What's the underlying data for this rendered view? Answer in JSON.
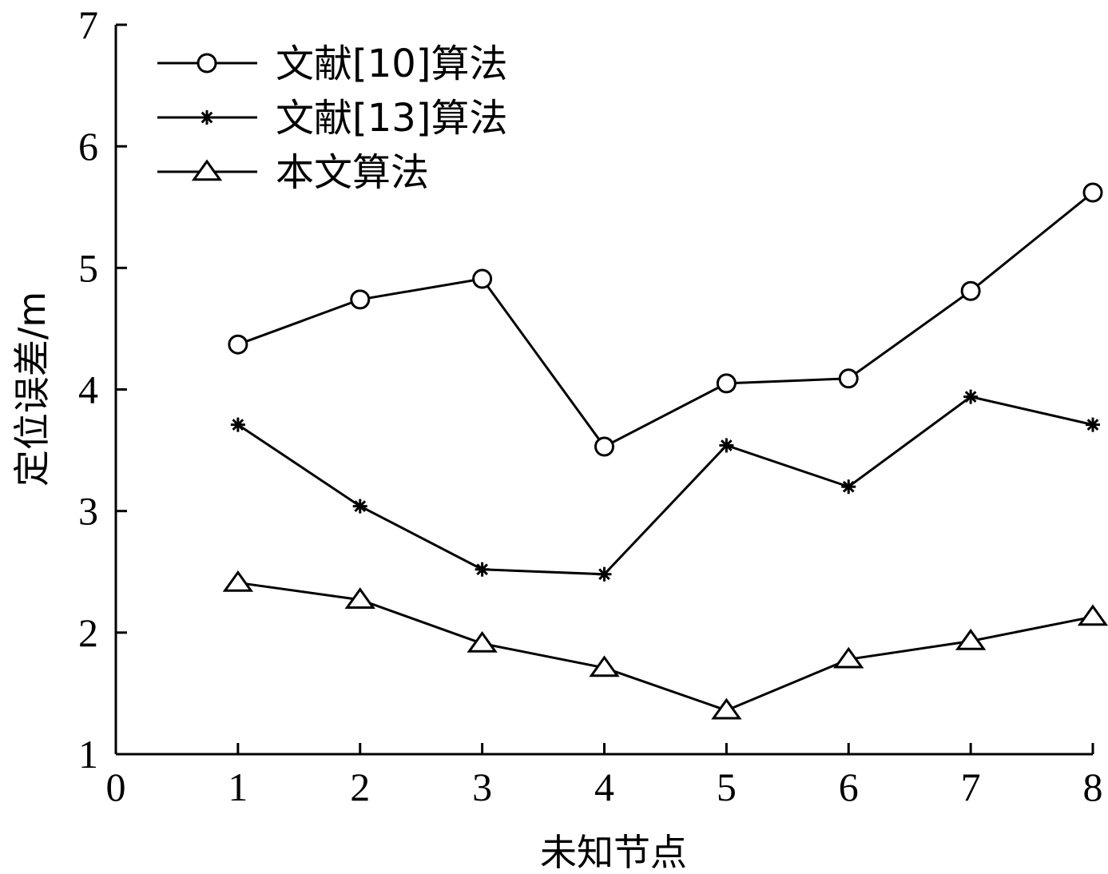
{
  "chart_data": {
    "type": "line",
    "x": [
      1,
      2,
      3,
      4,
      5,
      6,
      7,
      8
    ],
    "xlabel": "未知节点",
    "ylabel": "定位误差/m",
    "xlim": [
      0,
      8
    ],
    "ylim": [
      1,
      7
    ],
    "xticks": [
      "0",
      "1",
      "2",
      "3",
      "4",
      "5",
      "6",
      "7",
      "8"
    ],
    "yticks": [
      "1",
      "2",
      "3",
      "4",
      "5",
      "6",
      "7"
    ],
    "grid": false,
    "legend_position": "top-left",
    "series": [
      {
        "name": "文献[10]算法",
        "marker": "circle",
        "values": [
          4.37,
          4.74,
          4.91,
          3.53,
          4.05,
          4.09,
          4.81,
          5.62
        ]
      },
      {
        "name": "文献[13]算法",
        "marker": "star",
        "values": [
          3.71,
          3.04,
          2.52,
          2.48,
          3.54,
          3.2,
          3.94,
          3.71
        ]
      },
      {
        "name": "本文算法",
        "marker": "triangle",
        "values": [
          2.41,
          2.27,
          1.91,
          1.71,
          1.36,
          1.78,
          1.93,
          2.13
        ]
      }
    ]
  }
}
